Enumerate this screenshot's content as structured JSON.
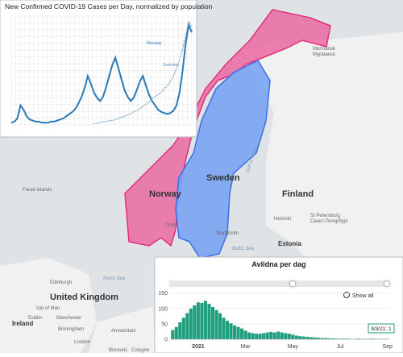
{
  "map": {
    "labels": [
      "Norway",
      "Sweden",
      "Finland",
      "Oslo",
      "Stockholm",
      "Helsinki",
      "St Petersburg",
      "Санкт-Петербург",
      "Estonia",
      "Faroe Islands",
      "North Sea",
      "Baltic Sea",
      "Gulf of Bothnia",
      "Murmansk",
      "Мурманск",
      "United Kingdom",
      "Edinburgh",
      "Isle of Man",
      "Ireland",
      "Dublin",
      "Manchester",
      "Birmingham",
      "London",
      "Amsterdam",
      "Brussels",
      "Cologne"
    ]
  },
  "chart_data": [
    {
      "type": "line",
      "title": "New Confirmed COVID-19 Cases per Day, normalized by population",
      "ylim": [
        0,
        100
      ],
      "grid": true,
      "series": [
        {
          "name": "Norway",
          "color": "#2a7ab8",
          "values": [
            2,
            3,
            6,
            18,
            14,
            8,
            5,
            4,
            3,
            3,
            2,
            2,
            2,
            3,
            3,
            4,
            5,
            6,
            8,
            10,
            12,
            15,
            20,
            26,
            34,
            45,
            38,
            30,
            25,
            22,
            26,
            35,
            45,
            55,
            62,
            52,
            42,
            32,
            26,
            22,
            25,
            32,
            40,
            45,
            36,
            28,
            22,
            18,
            14,
            12,
            11,
            10,
            11,
            13,
            18,
            30,
            50,
            75,
            92,
            85
          ]
        },
        {
          "name": "Sweden",
          "color": "#5a8fc0",
          "values": [
            null,
            null,
            null,
            null,
            null,
            null,
            null,
            null,
            null,
            null,
            null,
            null,
            null,
            null,
            null,
            null,
            null,
            null,
            null,
            null,
            null,
            null,
            null,
            null,
            null,
            null,
            null,
            1,
            2,
            2,
            3,
            3,
            4,
            4,
            5,
            6,
            7,
            8,
            9,
            10,
            12,
            13,
            15,
            17,
            19,
            21,
            24,
            26,
            28,
            30,
            33,
            36,
            40,
            45,
            52,
            60,
            70,
            82,
            95,
            90
          ]
        }
      ]
    },
    {
      "type": "bar",
      "title": "Avlidna per dag",
      "color": "#1f9e7c",
      "ylim": [
        0,
        165
      ],
      "yticks": [
        0,
        50,
        100,
        150
      ],
      "button": "Show all",
      "tooltip": "9/3/21: 1",
      "categories": [
        null,
        null,
        null,
        null,
        null,
        null,
        null,
        "2021",
        null,
        null,
        null,
        null,
        null,
        null,
        null,
        null,
        null,
        null,
        null,
        null,
        "Mar",
        null,
        null,
        null,
        null,
        null,
        null,
        null,
        null,
        null,
        null,
        null,
        null,
        "May",
        null,
        null,
        null,
        null,
        null,
        null,
        null,
        null,
        null,
        null,
        null,
        null,
        "Jul",
        null,
        null,
        null,
        null,
        null,
        null,
        null,
        null,
        null,
        null,
        null,
        null,
        "Sep"
      ],
      "values": [
        30,
        40,
        55,
        70,
        85,
        100,
        110,
        120,
        118,
        125,
        115,
        105,
        95,
        85,
        70,
        60,
        52,
        45,
        40,
        35,
        28,
        22,
        20,
        18,
        18,
        20,
        22,
        24,
        22,
        25,
        22,
        20,
        18,
        15,
        12,
        10,
        9,
        8,
        7,
        6,
        5,
        4,
        4,
        3,
        3,
        2,
        2,
        2,
        2,
        1,
        1,
        2,
        1,
        1,
        1,
        2,
        1,
        1,
        1,
        1
      ]
    }
  ]
}
